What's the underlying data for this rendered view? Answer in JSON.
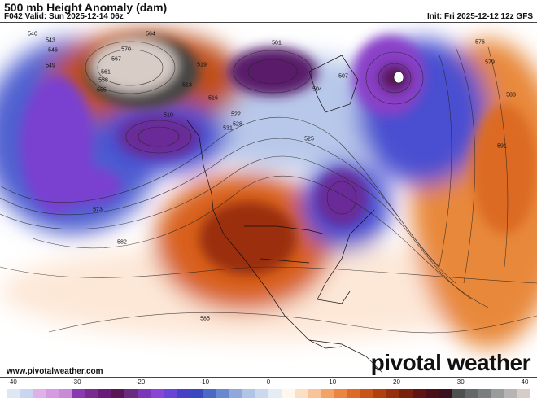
{
  "header": {
    "title": "500 mb Height Anomaly (dam)",
    "valid": "F042 Valid: Sun 2025-12-14 06z",
    "init": "Init: Fri 2025-12-12 12z GFS"
  },
  "footer": {
    "website": "www.pivotalweather.com",
    "logo": "pivotal weather"
  },
  "colorbar": {
    "ticks": [
      "-40",
      "-30",
      "-20",
      "-10",
      "0",
      "10",
      "20",
      "30",
      "40"
    ],
    "min": -40,
    "max": 40,
    "colors": [
      "#dfe7f4",
      "#c9d6ef",
      "#e0b0e8",
      "#d69ae2",
      "#c98ad8",
      "#8a3ab0",
      "#7a2a90",
      "#6a1a78",
      "#5a1458",
      "#6a2a80",
      "#7a38b8",
      "#8a44d8",
      "#6a44d8",
      "#4a40c8",
      "#3a48c0",
      "#4a68c8",
      "#6888d0",
      "#90a8dc",
      "#b0c4e6",
      "#cbd9ef",
      "#e4ecf6",
      "#fff6ee",
      "#fde0c4",
      "#f9c49a",
      "#f4a266",
      "#ec8444",
      "#dd6a28",
      "#c85418",
      "#b0400e",
      "#96300c",
      "#7a200c",
      "#601414",
      "#4a1018",
      "#3a1020",
      "#505050",
      "#646868",
      "#7a7e80",
      "#9a9c9c",
      "#b8b4b4",
      "#d8ccc8"
    ]
  },
  "contour_labels": [
    "540",
    "543",
    "546",
    "549",
    "555",
    "558",
    "561",
    "564",
    "567",
    "570",
    "519",
    "513",
    "510",
    "516",
    "522",
    "525",
    "528",
    "531",
    "501",
    "504",
    "507",
    "576",
    "579",
    "582",
    "585",
    "588",
    "591",
    "573"
  ],
  "colors": {
    "ridge": "#a8380c",
    "trough": "#6a2a90",
    "accent_orange": "#e07a30",
    "accent_blue": "#3a48c0"
  }
}
